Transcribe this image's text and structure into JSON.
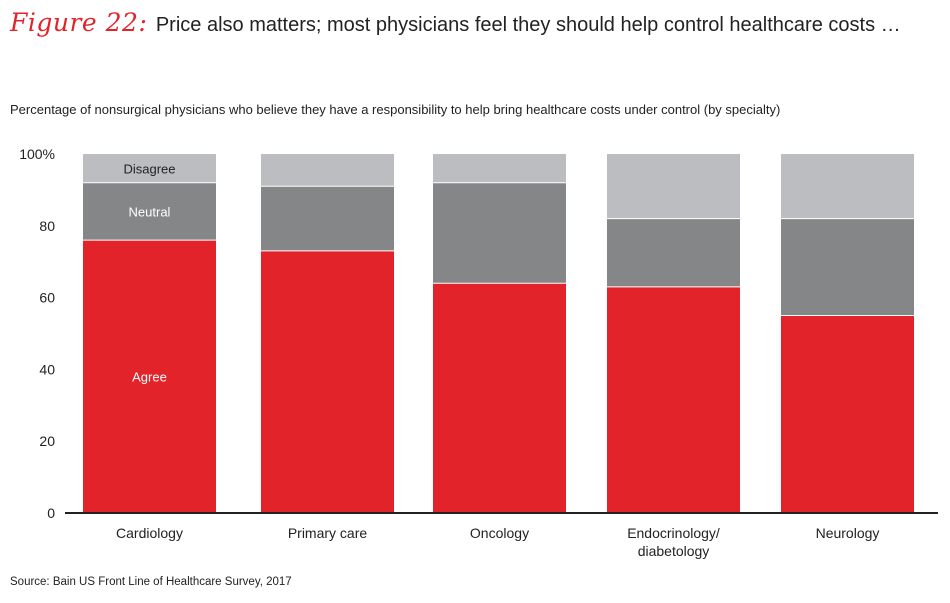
{
  "figure": {
    "label": "Figure 22:",
    "title": "Price also matters; most physicians feel they should help control healthcare costs …"
  },
  "subtitle": "Percentage of nonsurgical physicians who believe they have a responsibility to help bring healthcare costs under control (by specialty)",
  "source": "Source: Bain US Front Line of Healthcare Survey, 2017",
  "colors": {
    "agree": "#e3232a",
    "neutral": "#858688",
    "disagree": "#bcbdc0",
    "axis": "#222222"
  },
  "chart_data": {
    "type": "bar",
    "stacked": true,
    "categories": [
      "Cardiology",
      "Primary care",
      "Oncology",
      "Endocrinology/\ndiabetology",
      "Neurology"
    ],
    "series": [
      {
        "name": "Agree",
        "values": [
          76,
          73,
          64,
          63,
          55
        ]
      },
      {
        "name": "Neutral",
        "values": [
          16,
          18,
          28,
          19,
          27
        ]
      },
      {
        "name": "Disagree",
        "values": [
          8,
          9,
          8,
          18,
          18
        ]
      }
    ],
    "segment_labels": [
      "Agree",
      "Neutral",
      "Disagree"
    ],
    "y_ticks": [
      "0",
      "20",
      "40",
      "60",
      "80",
      "100%"
    ],
    "ylim": [
      0,
      100
    ],
    "grid": false,
    "legend": "inline labels on first bar"
  }
}
